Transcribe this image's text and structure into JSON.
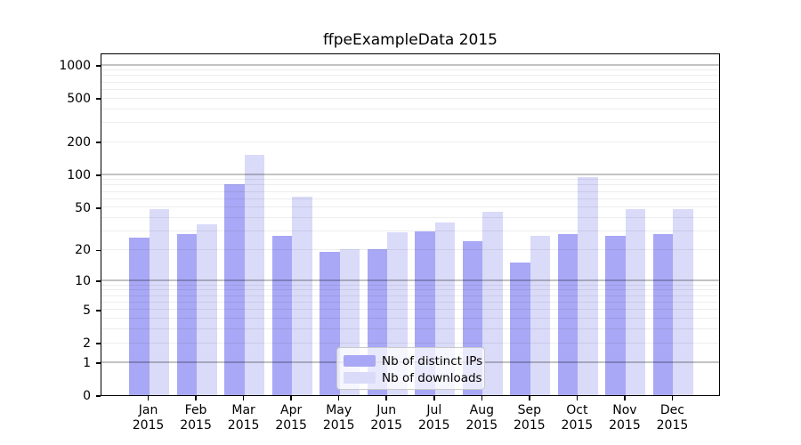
{
  "title": "ffpeExampleData 2015",
  "legend": {
    "items": [
      {
        "label": "Nb of distinct IPs"
      },
      {
        "label": "Nb of downloads"
      }
    ]
  },
  "colors": {
    "bar_distinct_ips": "#a8a8f6",
    "bar_downloads": "#dadaf9",
    "grid_major": "rgba(0,0,0,0.24)",
    "grid_minor": "rgba(0,0,0,0.07)",
    "axis": "#000000"
  },
  "chart_data": {
    "type": "bar",
    "title": "ffpeExampleData 2015",
    "y_scale": "log10(1+x)",
    "grid": true,
    "legend_position": "lower center",
    "categories": [
      "Jan 2015",
      "Feb 2015",
      "Mar 2015",
      "Apr 2015",
      "May 2015",
      "Jun 2015",
      "Jul 2015",
      "Aug 2015",
      "Sep 2015",
      "Oct 2015",
      "Nov 2015",
      "Dec 2015"
    ],
    "month_labels": [
      "Jan",
      "Feb",
      "Mar",
      "Apr",
      "May",
      "Jun",
      "Jul",
      "Aug",
      "Sep",
      "Oct",
      "Nov",
      "Dec"
    ],
    "year_label": "2015",
    "series": [
      {
        "name": "Nb of distinct IPs",
        "color": "#a8a8f6",
        "values": [
          26,
          28,
          82,
          27,
          19,
          20,
          30,
          24,
          15,
          28,
          27,
          28
        ]
      },
      {
        "name": "Nb of downloads",
        "color": "#dadaf9",
        "values": [
          48,
          35,
          151,
          62,
          20,
          29,
          36,
          45,
          27,
          95,
          48,
          48
        ]
      }
    ],
    "y_ticks": [
      0,
      1,
      2,
      5,
      10,
      20,
      50,
      100,
      200,
      500,
      1000
    ],
    "grid_major_values": [
      1,
      10,
      100,
      1000
    ],
    "grid_minor_values": [
      2,
      3,
      4,
      5,
      6,
      7,
      8,
      9,
      20,
      30,
      40,
      50,
      60,
      70,
      80,
      90,
      200,
      300,
      400,
      500,
      600,
      700,
      800,
      900
    ],
    "ylim": [
      0,
      1300
    ]
  }
}
